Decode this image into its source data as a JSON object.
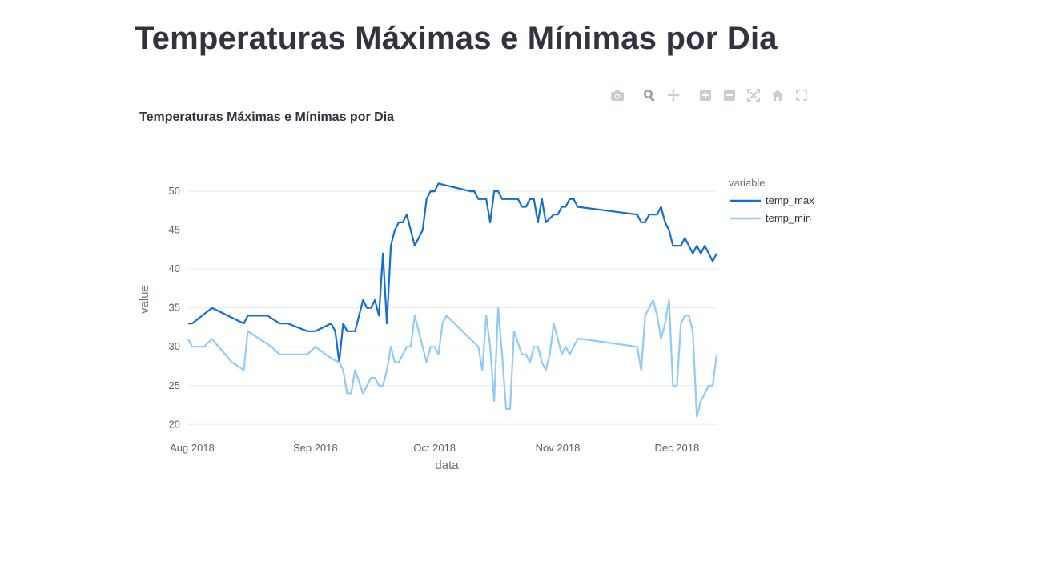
{
  "page": {
    "title": "Temperaturas Máximas e Mínimas por Dia"
  },
  "modebar": {
    "buttons": [
      "camera-icon",
      "zoom-icon",
      "pan-icon",
      "zoom-in-icon",
      "zoom-out-icon",
      "autoscale-icon",
      "home-icon",
      "fullscreen-icon"
    ]
  },
  "chart_data": {
    "type": "line",
    "title": "Temperaturas Máximas e Mínimas por Dia",
    "xlabel": "data",
    "ylabel": "value",
    "legend_title": "variable",
    "legend_position": "top-right",
    "grid": true,
    "xlim": [
      "2018-07-31",
      "2018-12-06"
    ],
    "ylim": [
      19,
      53
    ],
    "x_ticks": [
      {
        "date": "2018-08-01",
        "label": "Aug 2018"
      },
      {
        "date": "2018-09-01",
        "label": "Sep 2018"
      },
      {
        "date": "2018-10-01",
        "label": "Oct 2018"
      },
      {
        "date": "2018-11-01",
        "label": "Nov 2018"
      },
      {
        "date": "2018-12-01",
        "label": "Dec 2018"
      }
    ],
    "y_ticks": [
      20,
      25,
      30,
      35,
      40,
      45,
      50
    ],
    "series": [
      {
        "name": "temp_max",
        "color": "#0f6fd1",
        "points": [
          [
            "2018-07-31",
            33
          ],
          [
            "2018-08-01",
            33
          ],
          [
            "2018-08-06",
            35
          ],
          [
            "2018-08-14",
            33
          ],
          [
            "2018-08-15",
            34
          ],
          [
            "2018-08-20",
            34
          ],
          [
            "2018-08-23",
            33
          ],
          [
            "2018-08-25",
            33
          ],
          [
            "2018-08-30",
            32
          ],
          [
            "2018-09-01",
            32
          ],
          [
            "2018-09-05",
            33
          ],
          [
            "2018-09-06",
            32
          ],
          [
            "2018-09-07",
            28
          ],
          [
            "2018-09-08",
            33
          ],
          [
            "2018-09-09",
            32
          ],
          [
            "2018-09-11",
            32
          ],
          [
            "2018-09-13",
            36
          ],
          [
            "2018-09-14",
            35
          ],
          [
            "2018-09-15",
            35
          ],
          [
            "2018-09-16",
            36
          ],
          [
            "2018-09-17",
            34
          ],
          [
            "2018-09-18",
            42
          ],
          [
            "2018-09-19",
            33
          ],
          [
            "2018-09-20",
            43
          ],
          [
            "2018-09-21",
            45
          ],
          [
            "2018-09-22",
            46
          ],
          [
            "2018-09-23",
            46
          ],
          [
            "2018-09-24",
            47
          ],
          [
            "2018-09-25",
            45
          ],
          [
            "2018-09-26",
            43
          ],
          [
            "2018-09-28",
            45
          ],
          [
            "2018-09-29",
            49
          ],
          [
            "2018-09-30",
            50
          ],
          [
            "2018-10-01",
            50
          ],
          [
            "2018-10-02",
            51
          ],
          [
            "2018-10-10",
            50
          ],
          [
            "2018-10-11",
            50
          ],
          [
            "2018-10-12",
            49
          ],
          [
            "2018-10-14",
            49
          ],
          [
            "2018-10-15",
            46
          ],
          [
            "2018-10-16",
            50
          ],
          [
            "2018-10-17",
            50
          ],
          [
            "2018-10-18",
            49
          ],
          [
            "2018-10-22",
            49
          ],
          [
            "2018-10-23",
            48
          ],
          [
            "2018-10-24",
            48
          ],
          [
            "2018-10-25",
            49
          ],
          [
            "2018-10-26",
            49
          ],
          [
            "2018-10-27",
            46
          ],
          [
            "2018-10-28",
            49
          ],
          [
            "2018-10-29",
            46
          ],
          [
            "2018-10-30",
            46.5
          ],
          [
            "2018-10-31",
            47
          ],
          [
            "2018-11-01",
            47
          ],
          [
            "2018-11-02",
            48
          ],
          [
            "2018-11-03",
            48
          ],
          [
            "2018-11-04",
            49
          ],
          [
            "2018-11-05",
            49
          ],
          [
            "2018-11-06",
            48
          ],
          [
            "2018-11-21",
            47
          ],
          [
            "2018-11-22",
            46
          ],
          [
            "2018-11-23",
            46
          ],
          [
            "2018-11-24",
            47
          ],
          [
            "2018-11-26",
            47
          ],
          [
            "2018-11-27",
            48
          ],
          [
            "2018-11-28",
            46
          ],
          [
            "2018-11-29",
            45
          ],
          [
            "2018-11-30",
            43
          ],
          [
            "2018-12-01",
            43
          ],
          [
            "2018-12-02",
            43
          ],
          [
            "2018-12-03",
            44
          ],
          [
            "2018-12-04",
            43
          ],
          [
            "2018-12-05",
            42
          ],
          [
            "2018-12-06",
            43
          ],
          [
            "2018-12-07",
            42
          ],
          [
            "2018-12-08",
            43
          ],
          [
            "2018-12-09",
            42
          ],
          [
            "2018-12-10",
            41
          ],
          [
            "2018-12-11",
            42
          ]
        ]
      },
      {
        "name": "temp_min",
        "color": "#8fcbf5",
        "points": [
          [
            "2018-07-31",
            31
          ],
          [
            "2018-08-01",
            30
          ],
          [
            "2018-08-04",
            30
          ],
          [
            "2018-08-06",
            31
          ],
          [
            "2018-08-11",
            28
          ],
          [
            "2018-08-14",
            27
          ],
          [
            "2018-08-15",
            32
          ],
          [
            "2018-08-21",
            30
          ],
          [
            "2018-08-23",
            29
          ],
          [
            "2018-08-30",
            29
          ],
          [
            "2018-09-01",
            30
          ],
          [
            "2018-09-05",
            28.5
          ],
          [
            "2018-09-07",
            28
          ],
          [
            "2018-09-08",
            27
          ],
          [
            "2018-09-09",
            24
          ],
          [
            "2018-09-10",
            24
          ],
          [
            "2018-09-11",
            27
          ],
          [
            "2018-09-13",
            24
          ],
          [
            "2018-09-15",
            26
          ],
          [
            "2018-09-16",
            26
          ],
          [
            "2018-09-17",
            25
          ],
          [
            "2018-09-18",
            25
          ],
          [
            "2018-09-19",
            27
          ],
          [
            "2018-09-20",
            30
          ],
          [
            "2018-09-21",
            28
          ],
          [
            "2018-09-22",
            28
          ],
          [
            "2018-09-24",
            30
          ],
          [
            "2018-09-25",
            30
          ],
          [
            "2018-09-26",
            34
          ],
          [
            "2018-09-29",
            28
          ],
          [
            "2018-09-30",
            30
          ],
          [
            "2018-10-01",
            30
          ],
          [
            "2018-10-02",
            29
          ],
          [
            "2018-10-03",
            33
          ],
          [
            "2018-10-04",
            34
          ],
          [
            "2018-10-12",
            30
          ],
          [
            "2018-10-13",
            27
          ],
          [
            "2018-10-14",
            34
          ],
          [
            "2018-10-15",
            30
          ],
          [
            "2018-10-16",
            23
          ],
          [
            "2018-10-17",
            35
          ],
          [
            "2018-10-18",
            29
          ],
          [
            "2018-10-19",
            22
          ],
          [
            "2018-10-20",
            22
          ],
          [
            "2018-10-21",
            32
          ],
          [
            "2018-10-23",
            29
          ],
          [
            "2018-10-24",
            29
          ],
          [
            "2018-10-25",
            28
          ],
          [
            "2018-10-26",
            30
          ],
          [
            "2018-10-27",
            30
          ],
          [
            "2018-10-28",
            28
          ],
          [
            "2018-10-29",
            27
          ],
          [
            "2018-10-30",
            29
          ],
          [
            "2018-10-31",
            33
          ],
          [
            "2018-11-02",
            29
          ],
          [
            "2018-11-03",
            30
          ],
          [
            "2018-11-04",
            29
          ],
          [
            "2018-11-05",
            30
          ],
          [
            "2018-11-06",
            31
          ],
          [
            "2018-11-07",
            31
          ],
          [
            "2018-11-21",
            30
          ],
          [
            "2018-11-22",
            27
          ],
          [
            "2018-11-23",
            34
          ],
          [
            "2018-11-25",
            36
          ],
          [
            "2018-11-26",
            34
          ],
          [
            "2018-11-27",
            31
          ],
          [
            "2018-11-28",
            33
          ],
          [
            "2018-11-29",
            36
          ],
          [
            "2018-11-30",
            25
          ],
          [
            "2018-12-01",
            25
          ],
          [
            "2018-12-02",
            33
          ],
          [
            "2018-12-03",
            34
          ],
          [
            "2018-12-04",
            34
          ],
          [
            "2018-12-05",
            32
          ],
          [
            "2018-12-06",
            21
          ],
          [
            "2018-12-07",
            23
          ],
          [
            "2018-12-09",
            25
          ],
          [
            "2018-12-10",
            25
          ],
          [
            "2018-12-11",
            29
          ]
        ]
      }
    ]
  }
}
